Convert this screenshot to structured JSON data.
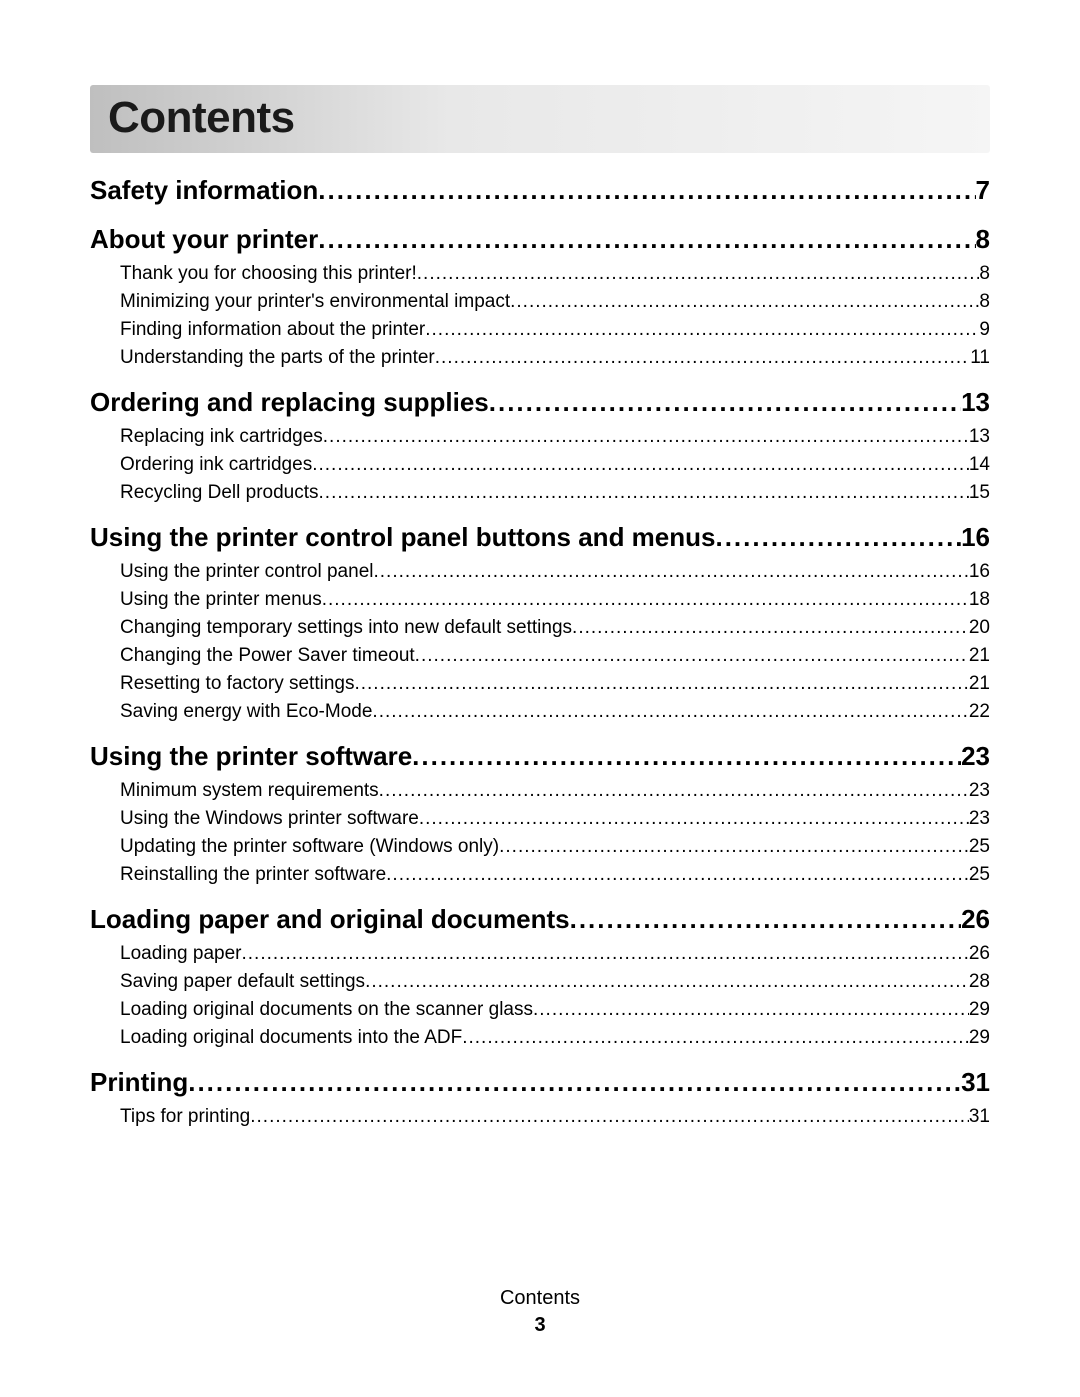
{
  "title": "Contents",
  "footer": {
    "label": "Contents",
    "page": "3"
  },
  "colors": {
    "text": "#000000",
    "title_bar_gradient_start": "#bfbfbf",
    "title_bar_gradient_end": "#f5f5f5",
    "background": "#ffffff"
  },
  "typography": {
    "title_fontsize": 44,
    "section_fontsize": 26,
    "sub_fontsize": 19,
    "footer_fontsize": 20,
    "font_family": "Segoe UI / Myriad Pro / sans-serif"
  },
  "sections": [
    {
      "label": "Safety information",
      "page": "7",
      "subs": []
    },
    {
      "label": "About your printer",
      "page": "8",
      "subs": [
        {
          "label": "Thank you for choosing this printer!",
          "page": "8"
        },
        {
          "label": "Minimizing your printer's environmental impact",
          "page": "8"
        },
        {
          "label": "Finding information about the printer",
          "page": "9"
        },
        {
          "label": "Understanding the parts of the printer",
          "page": "11"
        }
      ]
    },
    {
      "label": "Ordering and replacing supplies",
      "page": "13",
      "subs": [
        {
          "label": "Replacing ink cartridges",
          "page": "13"
        },
        {
          "label": "Ordering ink cartridges",
          "page": "14"
        },
        {
          "label": "Recycling Dell products",
          "page": "15"
        }
      ]
    },
    {
      "label": "Using the printer control panel buttons and menus",
      "page": "16",
      "subs": [
        {
          "label": "Using the printer control panel",
          "page": "16"
        },
        {
          "label": "Using the printer menus",
          "page": "18"
        },
        {
          "label": "Changing temporary settings into new default settings",
          "page": "20"
        },
        {
          "label": "Changing the Power Saver timeout",
          "page": "21"
        },
        {
          "label": "Resetting to factory settings",
          "page": "21"
        },
        {
          "label": "Saving energy with Eco-Mode",
          "page": "22"
        }
      ]
    },
    {
      "label": "Using the printer software",
      "page": "23",
      "subs": [
        {
          "label": "Minimum system requirements",
          "page": "23"
        },
        {
          "label": "Using the Windows printer software",
          "page": "23"
        },
        {
          "label": "Updating the printer software (Windows only)",
          "page": "25"
        },
        {
          "label": "Reinstalling the printer software",
          "page": "25"
        }
      ]
    },
    {
      "label": "Loading paper and original documents",
      "page": "26",
      "subs": [
        {
          "label": "Loading paper",
          "page": "26"
        },
        {
          "label": "Saving paper default settings",
          "page": "28"
        },
        {
          "label": "Loading original documents on the scanner glass",
          "page": "29"
        },
        {
          "label": "Loading original documents into the ADF",
          "page": "29"
        }
      ]
    },
    {
      "label": "Printing",
      "page": "31",
      "subs": [
        {
          "label": "Tips for printing",
          "page": "31"
        }
      ]
    }
  ]
}
